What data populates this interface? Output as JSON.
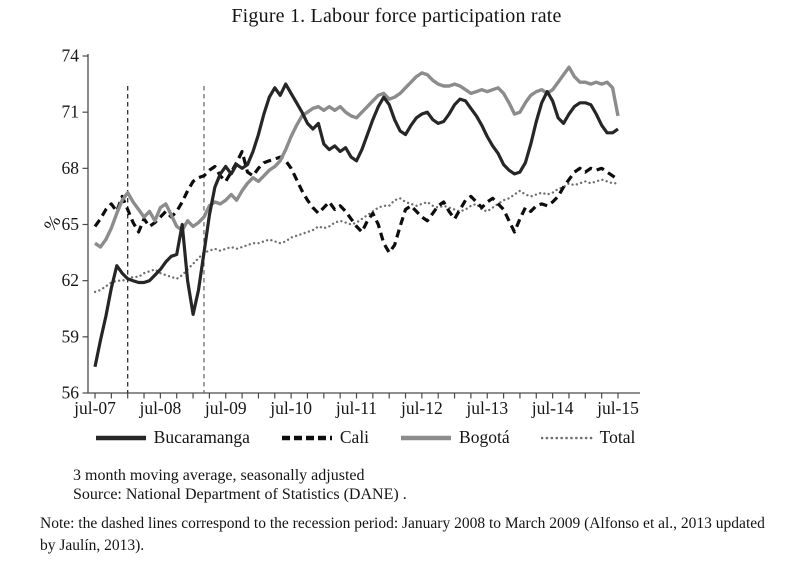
{
  "title": "Figure 1. Labour force participation rate",
  "captions": [
    "3 month moving average, seasonally adjusted",
    "Source: National Department of Statistics (DANE) ."
  ],
  "note": "Note: the dashed lines correspond to the recession period: January 2008 to March 2009 (Alfonso et al., 2013 updated by Jaulín, 2013).",
  "chart_data": {
    "type": "line",
    "ylabel": "%",
    "ylim": [
      56,
      74
    ],
    "yticks": [
      56,
      59,
      62,
      65,
      68,
      71,
      74
    ],
    "x_tick_labels": [
      "jul-07",
      "jul-08",
      "jul-09",
      "jul-10",
      "jul-11",
      "jul-12",
      "jul-13",
      "jul-14",
      "jul-15"
    ],
    "x_frequency": "monthly",
    "grid": "off",
    "legend_position": "bottom",
    "recession_lines": {
      "description": "vertical dashed lines marking recession period",
      "start_label": "January 2008",
      "end_label": "March 2009",
      "month_indices": [
        6,
        20
      ],
      "top_value": 72.4,
      "colors": [
        "#2e2e2e",
        "#6d6d6d"
      ]
    },
    "series": [
      {
        "name": "Bucaramanga",
        "style": "solid",
        "color": "#262626",
        "width": 3.2,
        "values": [
          57.4,
          58.8,
          60.1,
          61.6,
          62.8,
          62.4,
          62.1,
          62.0,
          61.9,
          61.9,
          62.0,
          62.3,
          62.6,
          63.0,
          63.3,
          63.4,
          65.0,
          62.0,
          60.2,
          61.5,
          63.5,
          65.5,
          67.0,
          67.7,
          68.1,
          67.7,
          68.2,
          68.0,
          68.2,
          68.9,
          69.8,
          70.9,
          71.8,
          72.3,
          71.9,
          72.5,
          72.0,
          71.5,
          71.0,
          70.4,
          70.1,
          70.4,
          69.3,
          69.0,
          69.2,
          68.9,
          69.1,
          68.6,
          68.4,
          69.0,
          69.8,
          70.6,
          71.3,
          71.8,
          71.4,
          70.6,
          70.0,
          69.8,
          70.3,
          70.7,
          70.9,
          71.0,
          70.6,
          70.4,
          70.5,
          70.9,
          71.4,
          71.7,
          71.6,
          71.2,
          70.8,
          70.3,
          69.7,
          69.2,
          68.8,
          68.2,
          67.9,
          67.7,
          67.8,
          68.3,
          69.3,
          70.5,
          71.5,
          72.1,
          71.6,
          70.7,
          70.4,
          70.9,
          71.3,
          71.5,
          71.5,
          71.4,
          70.9,
          70.3,
          69.9,
          69.9,
          70.1
        ]
      },
      {
        "name": "Cali",
        "style": "dashed",
        "color": "#0d0d0d",
        "width": 3.2,
        "values": [
          64.9,
          65.3,
          65.8,
          66.1,
          65.7,
          66.5,
          65.8,
          65.1,
          64.6,
          65.3,
          64.9,
          65.1,
          65.4,
          65.7,
          65.4,
          65.7,
          66.2,
          66.8,
          67.3,
          67.5,
          67.6,
          67.9,
          68.1,
          67.6,
          67.3,
          67.8,
          68.3,
          68.9,
          67.8,
          67.6,
          68.0,
          68.3,
          68.4,
          68.5,
          68.6,
          68.4,
          68.0,
          67.4,
          66.8,
          66.3,
          65.9,
          65.6,
          65.9,
          66.2,
          65.8,
          66.0,
          65.7,
          65.3,
          64.9,
          64.6,
          65.2,
          65.6,
          65.0,
          64.0,
          63.5,
          63.9,
          64.9,
          65.8,
          66.0,
          65.7,
          65.4,
          65.2,
          65.6,
          66.0,
          66.2,
          65.7,
          65.3,
          65.8,
          66.3,
          66.5,
          66.2,
          65.9,
          66.2,
          66.4,
          66.1,
          65.8,
          65.2,
          64.6,
          65.3,
          65.9,
          65.7,
          66.0,
          66.1,
          66.0,
          66.2,
          66.5,
          67.0,
          67.4,
          67.8,
          68.0,
          67.8,
          68.0,
          67.9,
          68.0,
          67.8,
          67.6,
          67.4
        ]
      },
      {
        "name": "Bogotá",
        "style": "solid",
        "color": "#8c8c8c",
        "width": 3.4,
        "values": [
          64.0,
          63.8,
          64.2,
          64.8,
          65.6,
          66.3,
          66.7,
          66.2,
          65.8,
          65.4,
          65.7,
          65.2,
          65.9,
          66.1,
          65.5,
          64.9,
          64.7,
          65.2,
          64.9,
          65.1,
          65.4,
          66.0,
          66.2,
          66.1,
          66.3,
          66.6,
          66.3,
          66.8,
          67.2,
          67.5,
          67.3,
          67.6,
          67.9,
          68.1,
          68.4,
          69.0,
          69.7,
          70.3,
          70.8,
          71.0,
          71.2,
          71.3,
          71.1,
          71.3,
          71.1,
          71.3,
          71.0,
          70.8,
          70.7,
          71.0,
          71.3,
          71.6,
          71.9,
          72.0,
          71.7,
          71.8,
          72.0,
          72.3,
          72.6,
          72.9,
          73.1,
          73.0,
          72.7,
          72.5,
          72.4,
          72.4,
          72.5,
          72.4,
          72.2,
          72.0,
          72.1,
          72.2,
          72.1,
          72.2,
          72.3,
          72.0,
          71.5,
          70.9,
          71.0,
          71.5,
          71.9,
          72.1,
          72.2,
          72.0,
          72.2,
          72.6,
          73.0,
          73.4,
          72.9,
          72.6,
          72.6,
          72.5,
          72.6,
          72.5,
          72.6,
          72.3,
          70.8
        ]
      },
      {
        "name": "Total",
        "style": "dotted",
        "color": "#6f6f6f",
        "width": 2.3,
        "values": [
          61.4,
          61.5,
          61.7,
          61.9,
          62.0,
          62.0,
          62.1,
          62.2,
          62.2,
          62.4,
          62.5,
          62.6,
          62.4,
          62.3,
          62.2,
          62.1,
          62.3,
          62.6,
          62.9,
          63.2,
          63.5,
          63.6,
          63.7,
          63.6,
          63.7,
          63.8,
          63.7,
          63.8,
          63.9,
          64.0,
          64.0,
          64.1,
          64.2,
          64.1,
          64.0,
          64.1,
          64.3,
          64.4,
          64.5,
          64.6,
          64.7,
          64.9,
          64.8,
          64.9,
          65.1,
          65.2,
          65.1,
          65.0,
          65.1,
          65.3,
          65.5,
          65.7,
          65.9,
          66.0,
          66.0,
          66.3,
          66.4,
          66.2,
          66.1,
          66.0,
          66.1,
          66.2,
          66.0,
          65.9,
          66.0,
          65.9,
          65.8,
          65.7,
          65.8,
          66.0,
          66.1,
          65.8,
          65.7,
          65.9,
          66.1,
          66.3,
          66.4,
          66.6,
          66.8,
          66.6,
          66.5,
          66.6,
          66.7,
          66.6,
          66.7,
          66.9,
          67.0,
          67.2,
          67.1,
          67.2,
          67.3,
          67.2,
          67.3,
          67.4,
          67.3,
          67.2,
          67.2
        ]
      }
    ]
  }
}
